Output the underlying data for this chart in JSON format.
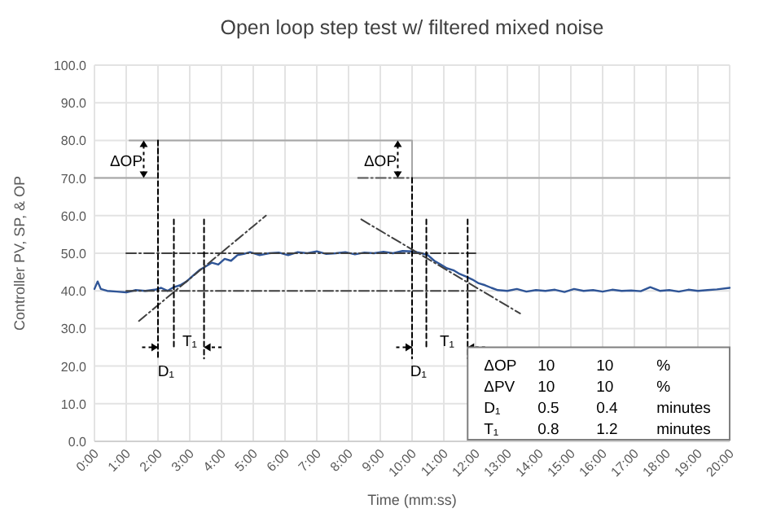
{
  "chart_data": {
    "type": "line",
    "title": "Open loop step test w/ filtered mixed noise",
    "xlabel": "Time (mm:ss)",
    "ylabel": "Controller PV, SP, & OP",
    "xlim": [
      0,
      20
    ],
    "ylim": [
      0,
      100
    ],
    "xticks": [
      {
        "value": 0,
        "label": "0:00"
      },
      {
        "value": 1,
        "label": "1:00"
      },
      {
        "value": 2,
        "label": "2:00"
      },
      {
        "value": 3,
        "label": "3:00"
      },
      {
        "value": 4,
        "label": "4:00"
      },
      {
        "value": 5,
        "label": "5:00"
      },
      {
        "value": 6,
        "label": "6:00"
      },
      {
        "value": 7,
        "label": "7:00"
      },
      {
        "value": 8,
        "label": "8:00"
      },
      {
        "value": 9,
        "label": "9:00"
      },
      {
        "value": 10,
        "label": "10:00"
      },
      {
        "value": 11,
        "label": "11:00"
      },
      {
        "value": 12,
        "label": "12:00"
      },
      {
        "value": 13,
        "label": "13:00"
      },
      {
        "value": 14,
        "label": "14:00"
      },
      {
        "value": 15,
        "label": "15:00"
      },
      {
        "value": 16,
        "label": "16:00"
      },
      {
        "value": 17,
        "label": "17:00"
      },
      {
        "value": 18,
        "label": "18:00"
      },
      {
        "value": 19,
        "label": "19:00"
      },
      {
        "value": 20,
        "label": "20:00"
      }
    ],
    "yticks": [
      {
        "value": 0,
        "label": "0.0"
      },
      {
        "value": 10,
        "label": "10.0"
      },
      {
        "value": 20,
        "label": "20.0"
      },
      {
        "value": 30,
        "label": "30.0"
      },
      {
        "value": 40,
        "label": "40.0"
      },
      {
        "value": 50,
        "label": "50.0"
      },
      {
        "value": 60,
        "label": "60.0"
      },
      {
        "value": 70,
        "label": "70.0"
      },
      {
        "value": 80,
        "label": "80.0"
      },
      {
        "value": 90,
        "label": "90.0"
      },
      {
        "value": 100,
        "label": "100.0"
      }
    ],
    "grid": true,
    "series": [
      {
        "color": "#a6a6a6",
        "line_style": "solid",
        "x": [
          0,
          2,
          2,
          10,
          10,
          20
        ],
        "values": [
          70,
          70,
          80,
          80,
          70,
          70
        ]
      },
      {
        "color": "#a6a6a6",
        "line_style": "solid",
        "x": [
          1.1,
          2
        ],
        "values": [
          80,
          80
        ]
      },
      {
        "color": "#595959",
        "line_style": "dashdot",
        "x": [
          8.3,
          10
        ],
        "values": [
          70,
          70
        ]
      },
      {
        "color": "#2f5597",
        "line_style": "solid",
        "x": [
          0,
          0.1,
          0.2,
          0.4,
          0.7,
          1.0,
          1.3,
          1.6,
          1.9,
          2.1,
          2.3,
          2.5,
          2.7,
          2.9,
          3.1,
          3.3,
          3.5,
          3.7,
          3.9,
          4.1,
          4.3,
          4.5,
          4.7,
          4.9,
          5.2,
          5.5,
          5.8,
          6.1,
          6.4,
          6.7,
          7.0,
          7.3,
          7.6,
          7.9,
          8.2,
          8.5,
          8.8,
          9.1,
          9.4,
          9.7,
          10.0,
          10.3,
          10.5,
          10.7,
          10.9,
          11.1,
          11.3,
          11.5,
          11.7,
          11.9,
          12.1,
          12.3,
          12.5,
          12.7,
          13.0,
          13.3,
          13.6,
          13.9,
          14.2,
          14.5,
          14.8,
          15.1,
          15.4,
          15.7,
          16.0,
          16.3,
          16.6,
          16.9,
          17.2,
          17.5,
          17.8,
          18.1,
          18.4,
          18.7,
          19.0,
          19.3,
          19.6,
          20.0
        ],
        "values": [
          40.5,
          42.5,
          40.5,
          40,
          39.8,
          39.6,
          40.2,
          40,
          40.3,
          40.8,
          40,
          41,
          41.5,
          42.5,
          44,
          45.5,
          46.5,
          47.5,
          47,
          48.5,
          48,
          49.5,
          49.8,
          50.3,
          49.5,
          50,
          50.2,
          49.5,
          50.3,
          50,
          50.5,
          49.8,
          50,
          50.3,
          49.7,
          50.2,
          50,
          50.4,
          50,
          50.6,
          50.5,
          50,
          49.5,
          48,
          47,
          46,
          45.5,
          44.5,
          43.8,
          43,
          42,
          41.5,
          40.8,
          40.2,
          40,
          40.5,
          39.8,
          40.2,
          40,
          40.3,
          39.7,
          40.5,
          40,
          40.2,
          39.8,
          40.3,
          40,
          40.1,
          39.9,
          41,
          40,
          40.2,
          39.8,
          40.3,
          40,
          40.2,
          40.4,
          40.8
        ]
      },
      {
        "color": "#404040",
        "line_style": "dashdot",
        "x": [
          1.4,
          5.4
        ],
        "values": [
          32,
          60
        ]
      },
      {
        "color": "#404040",
        "line_style": "dashdot",
        "x": [
          8.4,
          13.4
        ],
        "values": [
          59,
          34
        ]
      },
      {
        "color": "#404040",
        "line_style": "dashdot",
        "x": [
          1,
          12
        ],
        "values": [
          50,
          50
        ]
      },
      {
        "color": "#404040",
        "line_style": "dashdot",
        "x": [
          1,
          12
        ],
        "values": [
          40,
          40
        ]
      },
      {
        "color": "#000000",
        "line_style": "dashed",
        "x": [
          2,
          2
        ],
        "values": [
          80,
          22
        ]
      },
      {
        "color": "#000000",
        "line_style": "dashed",
        "x": [
          2.5,
          2.5
        ],
        "values": [
          59,
          25
        ]
      },
      {
        "color": "#000000",
        "line_style": "dashed",
        "x": [
          3.45,
          3.45
        ],
        "values": [
          59,
          22
        ]
      },
      {
        "color": "#000000",
        "line_style": "dashed",
        "x": [
          10,
          10
        ],
        "values": [
          70,
          22
        ]
      },
      {
        "color": "#000000",
        "line_style": "dashed",
        "x": [
          10.45,
          10.45
        ],
        "values": [
          59,
          25
        ]
      },
      {
        "color": "#000000",
        "line_style": "dashed",
        "x": [
          11.75,
          11.75
        ],
        "values": [
          59,
          22
        ]
      }
    ],
    "annotations": [
      "ΔOP",
      "ΔOP",
      "D₁",
      "T₁",
      "D₁",
      "T₁",
      "ΔOP",
      "10",
      "10",
      "%",
      "ΔPV",
      "10",
      "10",
      "%",
      "D₁",
      "0.5",
      "0.4",
      "minutes",
      "T₁",
      "0.8",
      "1.2",
      "minutes"
    ]
  }
}
